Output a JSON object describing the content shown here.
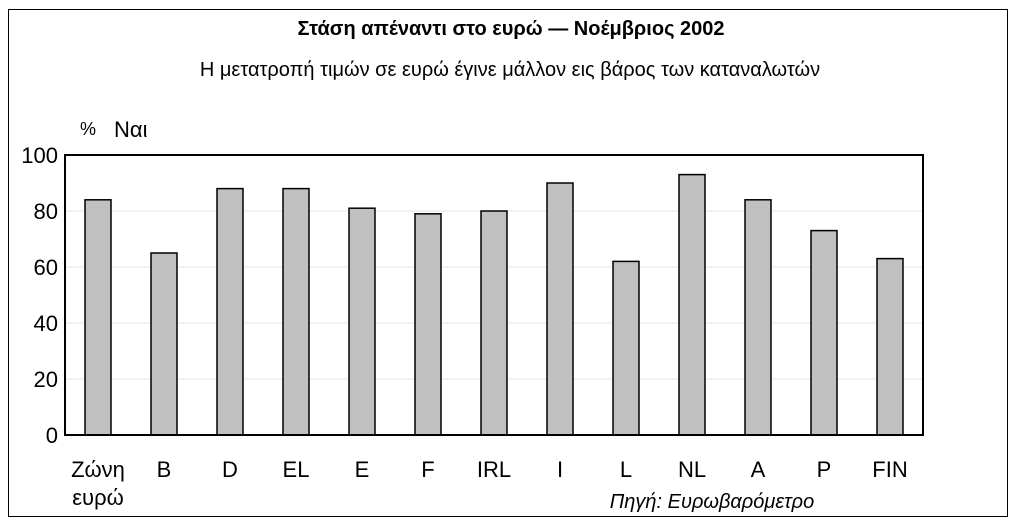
{
  "chart_data": {
    "type": "bar",
    "title": "Στάση απέναντι στο ευρώ — Νοέμβριος 2002",
    "subtitle": "Η μετατροπή τιμών σε ευρώ έγινε μάλλον εις βάρος των καταναλωτών",
    "unit": "%",
    "ylabel": "Ναι",
    "categories": [
      [
        "Ζώνη",
        "ευρώ"
      ],
      [
        "B"
      ],
      [
        "D"
      ],
      [
        "EL"
      ],
      [
        "E"
      ],
      [
        "F"
      ],
      [
        "IRL"
      ],
      [
        "I"
      ],
      [
        "L"
      ],
      [
        "NL"
      ],
      [
        "A"
      ],
      [
        "P"
      ],
      [
        "FIN"
      ]
    ],
    "values": [
      84,
      65,
      88,
      88,
      81,
      79,
      80,
      90,
      62,
      93,
      84,
      73,
      63
    ],
    "ylim": [
      0,
      100
    ],
    "yticks": [
      0,
      20,
      40,
      60,
      80,
      100
    ],
    "grid": true,
    "bar_color": "#c0c0c0",
    "source": "Πηγή: Ευρωβαρόμετρο"
  }
}
